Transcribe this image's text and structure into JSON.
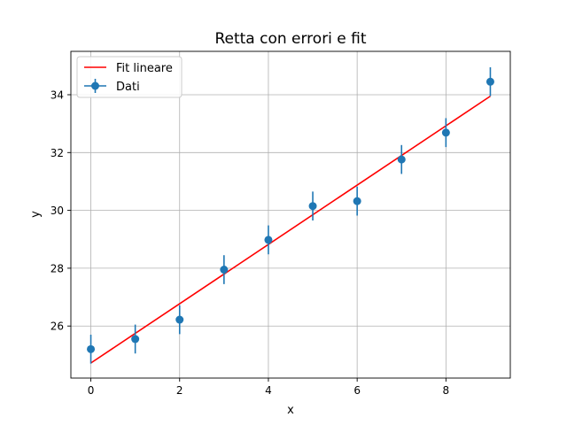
{
  "chart_data": {
    "type": "scatter",
    "title": "Retta con errori e fit",
    "xlabel": "x",
    "ylabel": "y",
    "xlim": [
      -0.45,
      9.45
    ],
    "ylim": [
      24.2,
      35.5
    ],
    "xticks": [
      0,
      2,
      4,
      6,
      8
    ],
    "yticks": [
      26,
      28,
      30,
      32,
      34
    ],
    "grid": true,
    "legend_position": "top-left",
    "series": [
      {
        "name": "Fit lineare",
        "kind": "line",
        "color": "#ff0000",
        "x": [
          0,
          9
        ],
        "y": [
          24.72,
          33.95
        ]
      },
      {
        "name": "Dati",
        "kind": "errorbar",
        "color": "#1f77b4",
        "x": [
          0,
          1,
          2,
          3,
          4,
          5,
          6,
          7,
          8,
          9
        ],
        "y": [
          25.2,
          25.55,
          26.22,
          27.95,
          28.98,
          30.15,
          30.32,
          31.76,
          32.69,
          34.45
        ],
        "yerr": [
          0.5,
          0.5,
          0.5,
          0.5,
          0.5,
          0.5,
          0.5,
          0.5,
          0.5,
          0.5
        ]
      }
    ]
  }
}
